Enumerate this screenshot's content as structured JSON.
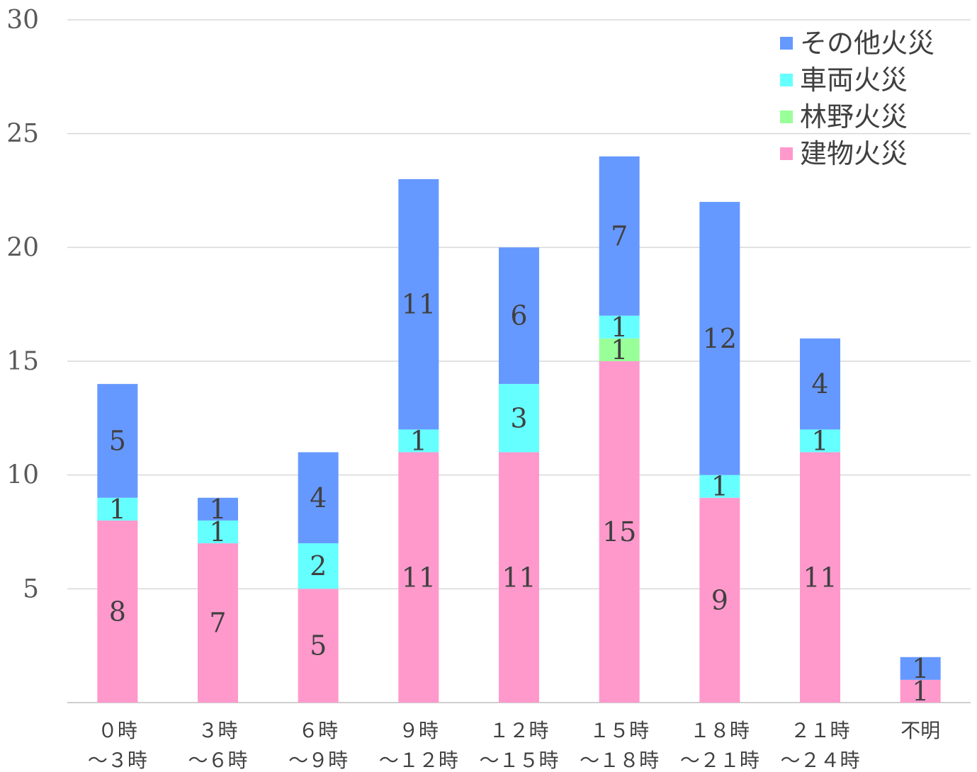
{
  "chart_data": {
    "type": "bar",
    "stacked": true,
    "categories": [
      [
        "０時",
        "～３時"
      ],
      [
        "３時",
        "～６時"
      ],
      [
        "６時",
        "～９時"
      ],
      [
        "９時",
        "～１２時"
      ],
      [
        "１２時",
        "～１５時"
      ],
      [
        "１５時",
        "～１８時"
      ],
      [
        "１８時",
        "～２１時"
      ],
      [
        "２１時",
        "～２４時"
      ],
      [
        "不明"
      ]
    ],
    "series": [
      {
        "name": "建物火災",
        "color": "#ff99cc",
        "values": [
          8,
          7,
          5,
          11,
          11,
          15,
          9,
          11,
          1
        ]
      },
      {
        "name": "林野火災",
        "color": "#99ff99",
        "values": [
          0,
          0,
          0,
          0,
          0,
          1,
          0,
          0,
          0
        ]
      },
      {
        "name": "車両火災",
        "color": "#66ffff",
        "values": [
          1,
          1,
          2,
          1,
          3,
          1,
          1,
          1,
          0
        ]
      },
      {
        "name": "その他火災",
        "color": "#6699ff",
        "values": [
          5,
          1,
          4,
          11,
          6,
          7,
          12,
          4,
          1
        ]
      }
    ],
    "legend_order": [
      "その他火災",
      "車両火災",
      "林野火災",
      "建物火災"
    ],
    "ylim": [
      0,
      30
    ],
    "yticks": [
      5,
      10,
      15,
      20,
      25,
      30
    ],
    "grid": true,
    "legend_position": "top-right",
    "data_labels": true
  }
}
